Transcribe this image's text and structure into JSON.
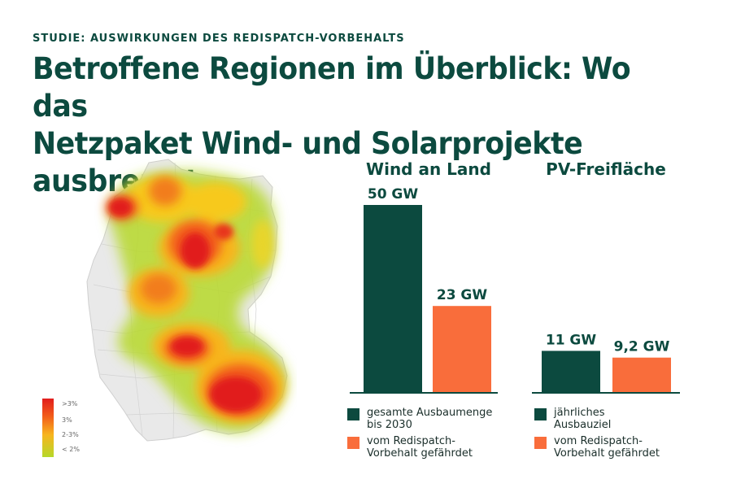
{
  "header": {
    "kicker": "STUDIE: AUSWIRKUNGEN DES REDISPATCH-VORBEHALTS",
    "headline_line1": "Betroffene Regionen im Überblick: Wo das",
    "headline_line2": "Netzpaket Wind- und Solarprojekte ausbremst"
  },
  "map": {
    "scale_labels": [
      ">3%",
      "3%",
      "2-3%",
      "< 2%"
    ],
    "colors": {
      "high": "#e11d1d",
      "mid": "#f25c1a",
      "low": "#f7b51e",
      "lowest": "#b6d82a",
      "land": "#e9e9e9"
    }
  },
  "colors": {
    "dark_green": "#0c4a3f",
    "orange": "#f96d3b"
  },
  "chart_data": [
    {
      "type": "bar",
      "title": "Wind an Land",
      "categories": [
        "gesamte Ausbaumenge bis 2030",
        "vom Redispatch-Vorbehalt gefährdet"
      ],
      "values": [
        50,
        23
      ],
      "value_labels": [
        "50 GW",
        "23 GW"
      ],
      "unit": "GW",
      "ylim": [
        0,
        50
      ]
    },
    {
      "type": "bar",
      "title": "PV-Freifläche",
      "categories": [
        "jährliches Ausbauziel",
        "vom Redispatch-Vorbehalt gefährdet"
      ],
      "values": [
        11,
        9.2
      ],
      "value_labels": [
        "11 GW",
        "9,2 GW"
      ],
      "unit": "GW",
      "ylim": [
        0,
        50
      ]
    }
  ],
  "legend": {
    "wind_item1_line1": "gesamte Ausbaumenge",
    "wind_item1_line2": "bis 2030",
    "wind_item2_line1": "vom Redispatch-",
    "wind_item2_line2": "Vorbehalt gefährdet",
    "pv_item1_line1": "jährliches",
    "pv_item1_line2": "Ausbauziel",
    "pv_item2_line1": "vom Redispatch-",
    "pv_item2_line2": "Vorbehalt gefährdet"
  }
}
